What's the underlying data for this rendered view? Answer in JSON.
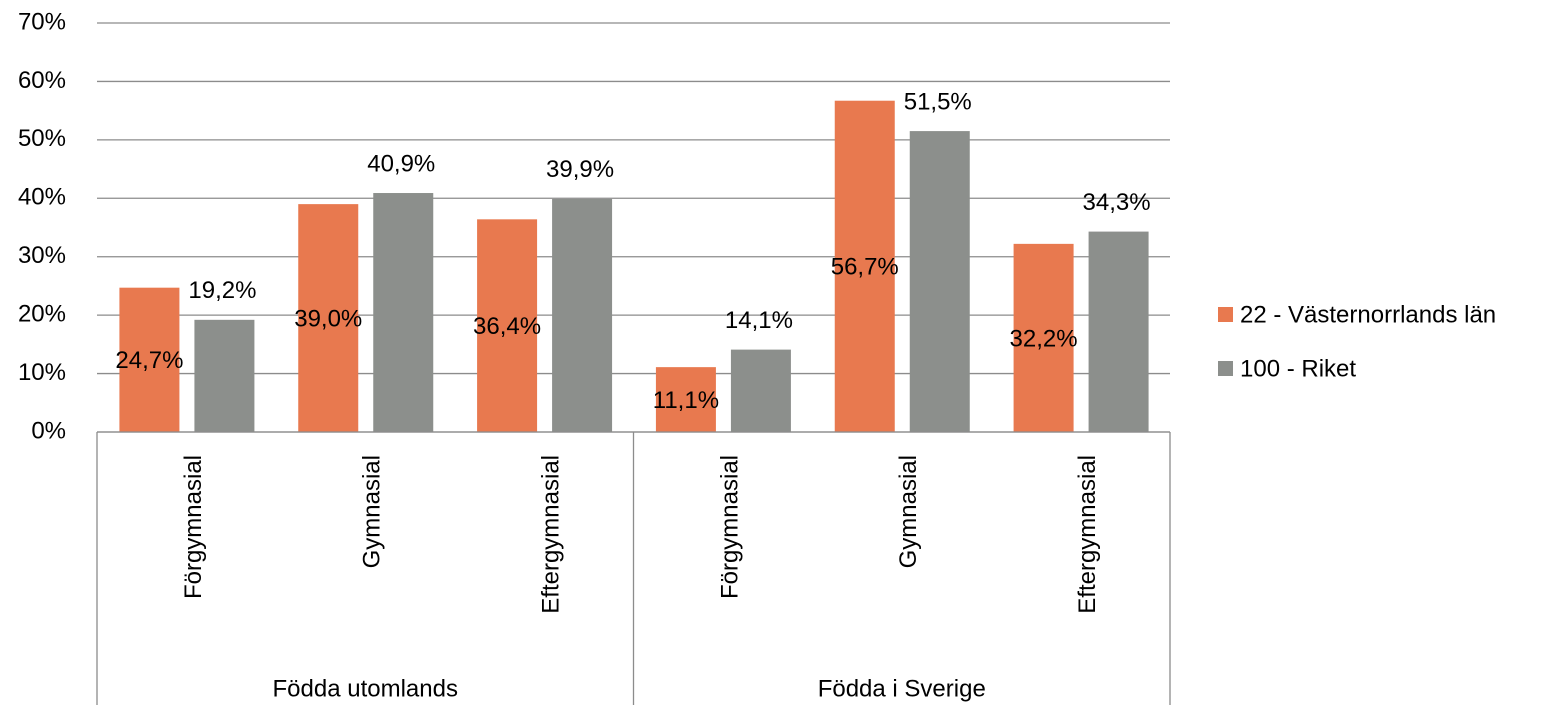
{
  "chart_data": {
    "type": "bar",
    "categories": [
      "Förgymnasial",
      "Gymnasial",
      "Eftergymnasial",
      "Förgymnasial",
      "Gymnasial",
      "Eftergymnasial"
    ],
    "group_labels": [
      "Födda utomlands",
      "Födda i Sverige"
    ],
    "series": [
      {
        "name": "22 - Västernorrlands län",
        "color": "#e8794f",
        "values": [
          24.7,
          39.0,
          36.4,
          11.1,
          56.7,
          32.2
        ],
        "value_labels": [
          "24,7%",
          "39,0%",
          "36,4%",
          "11,1%",
          "56,7%",
          "32,2%"
        ]
      },
      {
        "name": "100 - Riket",
        "color": "#8c8f8c",
        "values": [
          19.2,
          40.9,
          39.9,
          14.1,
          51.5,
          34.3
        ],
        "value_labels": [
          "19,2%",
          "40,9%",
          "39,9%",
          "14,1%",
          "51,5%",
          "34,3%"
        ]
      }
    ],
    "ylim": [
      0,
      70
    ],
    "yticks": [
      {
        "value": 0,
        "label": "0%"
      },
      {
        "value": 10,
        "label": "10%"
      },
      {
        "value": 20,
        "label": "20%"
      },
      {
        "value": 30,
        "label": "30%"
      },
      {
        "value": 40,
        "label": "40%"
      },
      {
        "value": 50,
        "label": "50%"
      },
      {
        "value": 60,
        "label": "60%"
      },
      {
        "value": 70,
        "label": "70%"
      }
    ],
    "grid": true,
    "legend": "right"
  }
}
